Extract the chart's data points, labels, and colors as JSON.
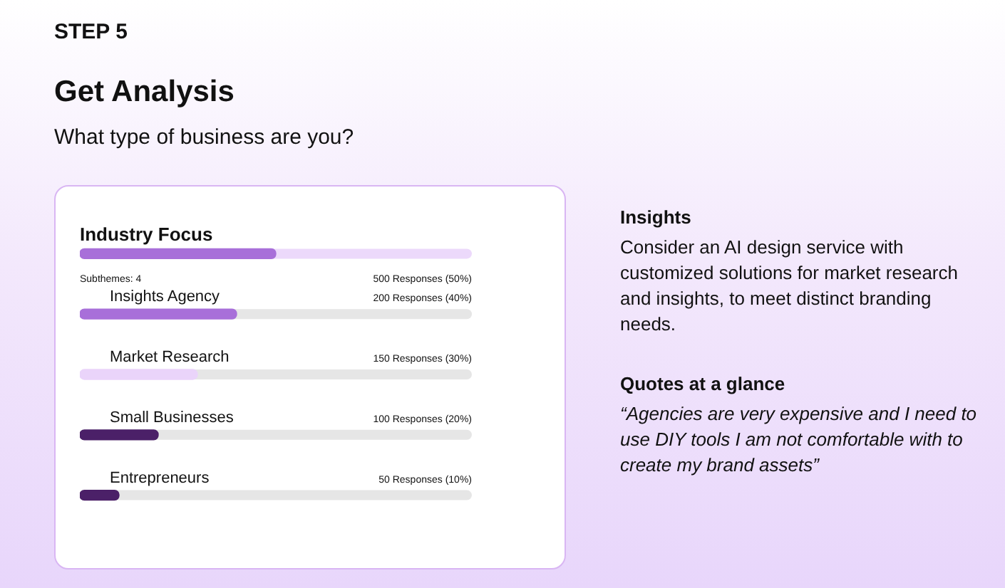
{
  "chart_data": {
    "type": "bar",
    "orientation": "horizontal",
    "title": "Get Analysis",
    "subtitle": "What type of business are you?",
    "categories": [
      "Industry Focus",
      "Insights Agency",
      "Market Research",
      "Small Businesses",
      "Entrepreneurs"
    ],
    "values": [
      50,
      40,
      30,
      20,
      10
    ],
    "colors": [
      "#a86fd9",
      "#a86fd9",
      "#ead4fa",
      "#4b2068",
      "#4b2068"
    ],
    "value_labels": [
      "500 Responses (50%)",
      "200 Responses (40%)",
      "150 Responses (30%)",
      "100 Responses (20%)",
      "50 Responses (10%)"
    ],
    "xlim": [
      0,
      100
    ],
    "tick_labels": false,
    "legend": false,
    "annotations": [
      "STEP 5",
      "Subthemes: 4",
      "Insights",
      "Consider an AI design service with customized solutions for market research and insights,  to meet distinct branding needs.",
      "Quotes at a glance",
      "“Agencies are very expensive and I need to use DIY tools I am not comfortable with to create my brand assets”"
    ]
  }
}
